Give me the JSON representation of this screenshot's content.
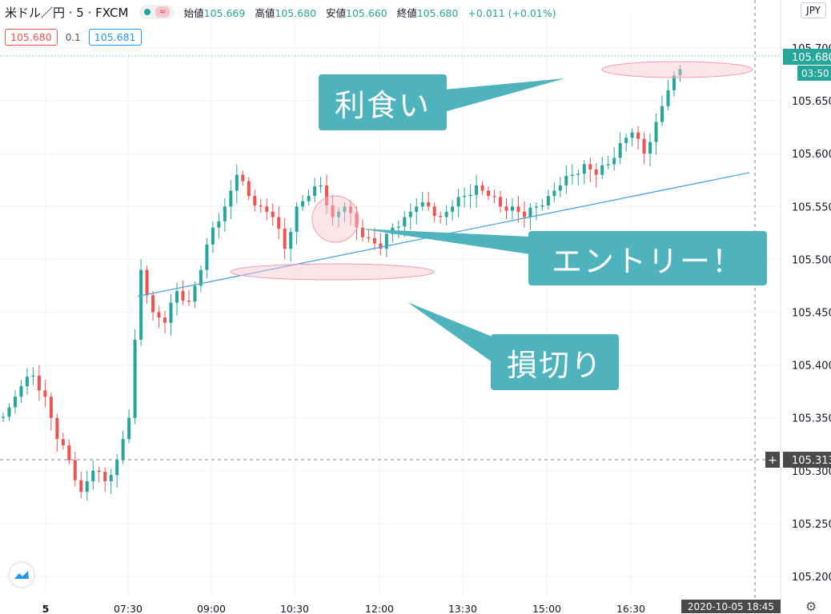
{
  "header": {
    "symbol": "米ドル／円 · 5 · FXCM",
    "status_badge": "≈",
    "open_label": "始値",
    "open_value": "105.669",
    "high_label": "高値",
    "high_value": "105.680",
    "low_label": "安値",
    "low_value": "105.660",
    "close_label": "終値",
    "close_value": "105.680",
    "change": "+0.011 (+0.01%)"
  },
  "quote": {
    "bid": "105.680",
    "spread": "0.1",
    "ask": "105.681"
  },
  "currency": "JPY",
  "callouts": {
    "take_profit": "利食い",
    "entry": "エントリー！",
    "stop_loss": "損切り"
  },
  "crosshair": {
    "price_label": "105.313",
    "time_label": "2020-10-05   18:45"
  },
  "last_price": {
    "price_label": "105.680",
    "countdown": "03:50"
  },
  "colors": {
    "up": "#26a69a",
    "down": "#ef5350",
    "trendline": "#4aa3df",
    "callout": "#4fb3bd",
    "highlight": "#f7c6cf"
  },
  "chart_data": {
    "type": "candlestick",
    "ylim": [
      105.19,
      105.72
    ],
    "y_ticks": [
      "105.700",
      "105.650",
      "105.600",
      "105.550",
      "105.500",
      "105.450",
      "105.400",
      "105.350",
      "105.300",
      "105.250",
      "105.200"
    ],
    "x_ticks": [
      "5",
      "07:30",
      "09:00",
      "10:30",
      "12:00",
      "13:30",
      "15:00",
      "16:30"
    ],
    "close_series": [
      105.36,
      105.38,
      105.39,
      105.37,
      105.33,
      105.31,
      105.28,
      105.3,
      105.29,
      105.31,
      105.35,
      105.49,
      105.45,
      105.44,
      105.47,
      105.46,
      105.49,
      105.53,
      105.55,
      105.58,
      105.56,
      105.55,
      105.54,
      105.51,
      105.55,
      105.56,
      105.57,
      105.54,
      105.55,
      105.53,
      105.52,
      105.51,
      105.53,
      105.54,
      105.55,
      105.55,
      105.54,
      105.55,
      105.56,
      105.57,
      105.56,
      105.55,
      105.55,
      105.54,
      105.55,
      105.56,
      105.57,
      105.58,
      105.59,
      105.58,
      105.59,
      105.61,
      105.62,
      105.6,
      105.63,
      105.66,
      105.68
    ]
  }
}
